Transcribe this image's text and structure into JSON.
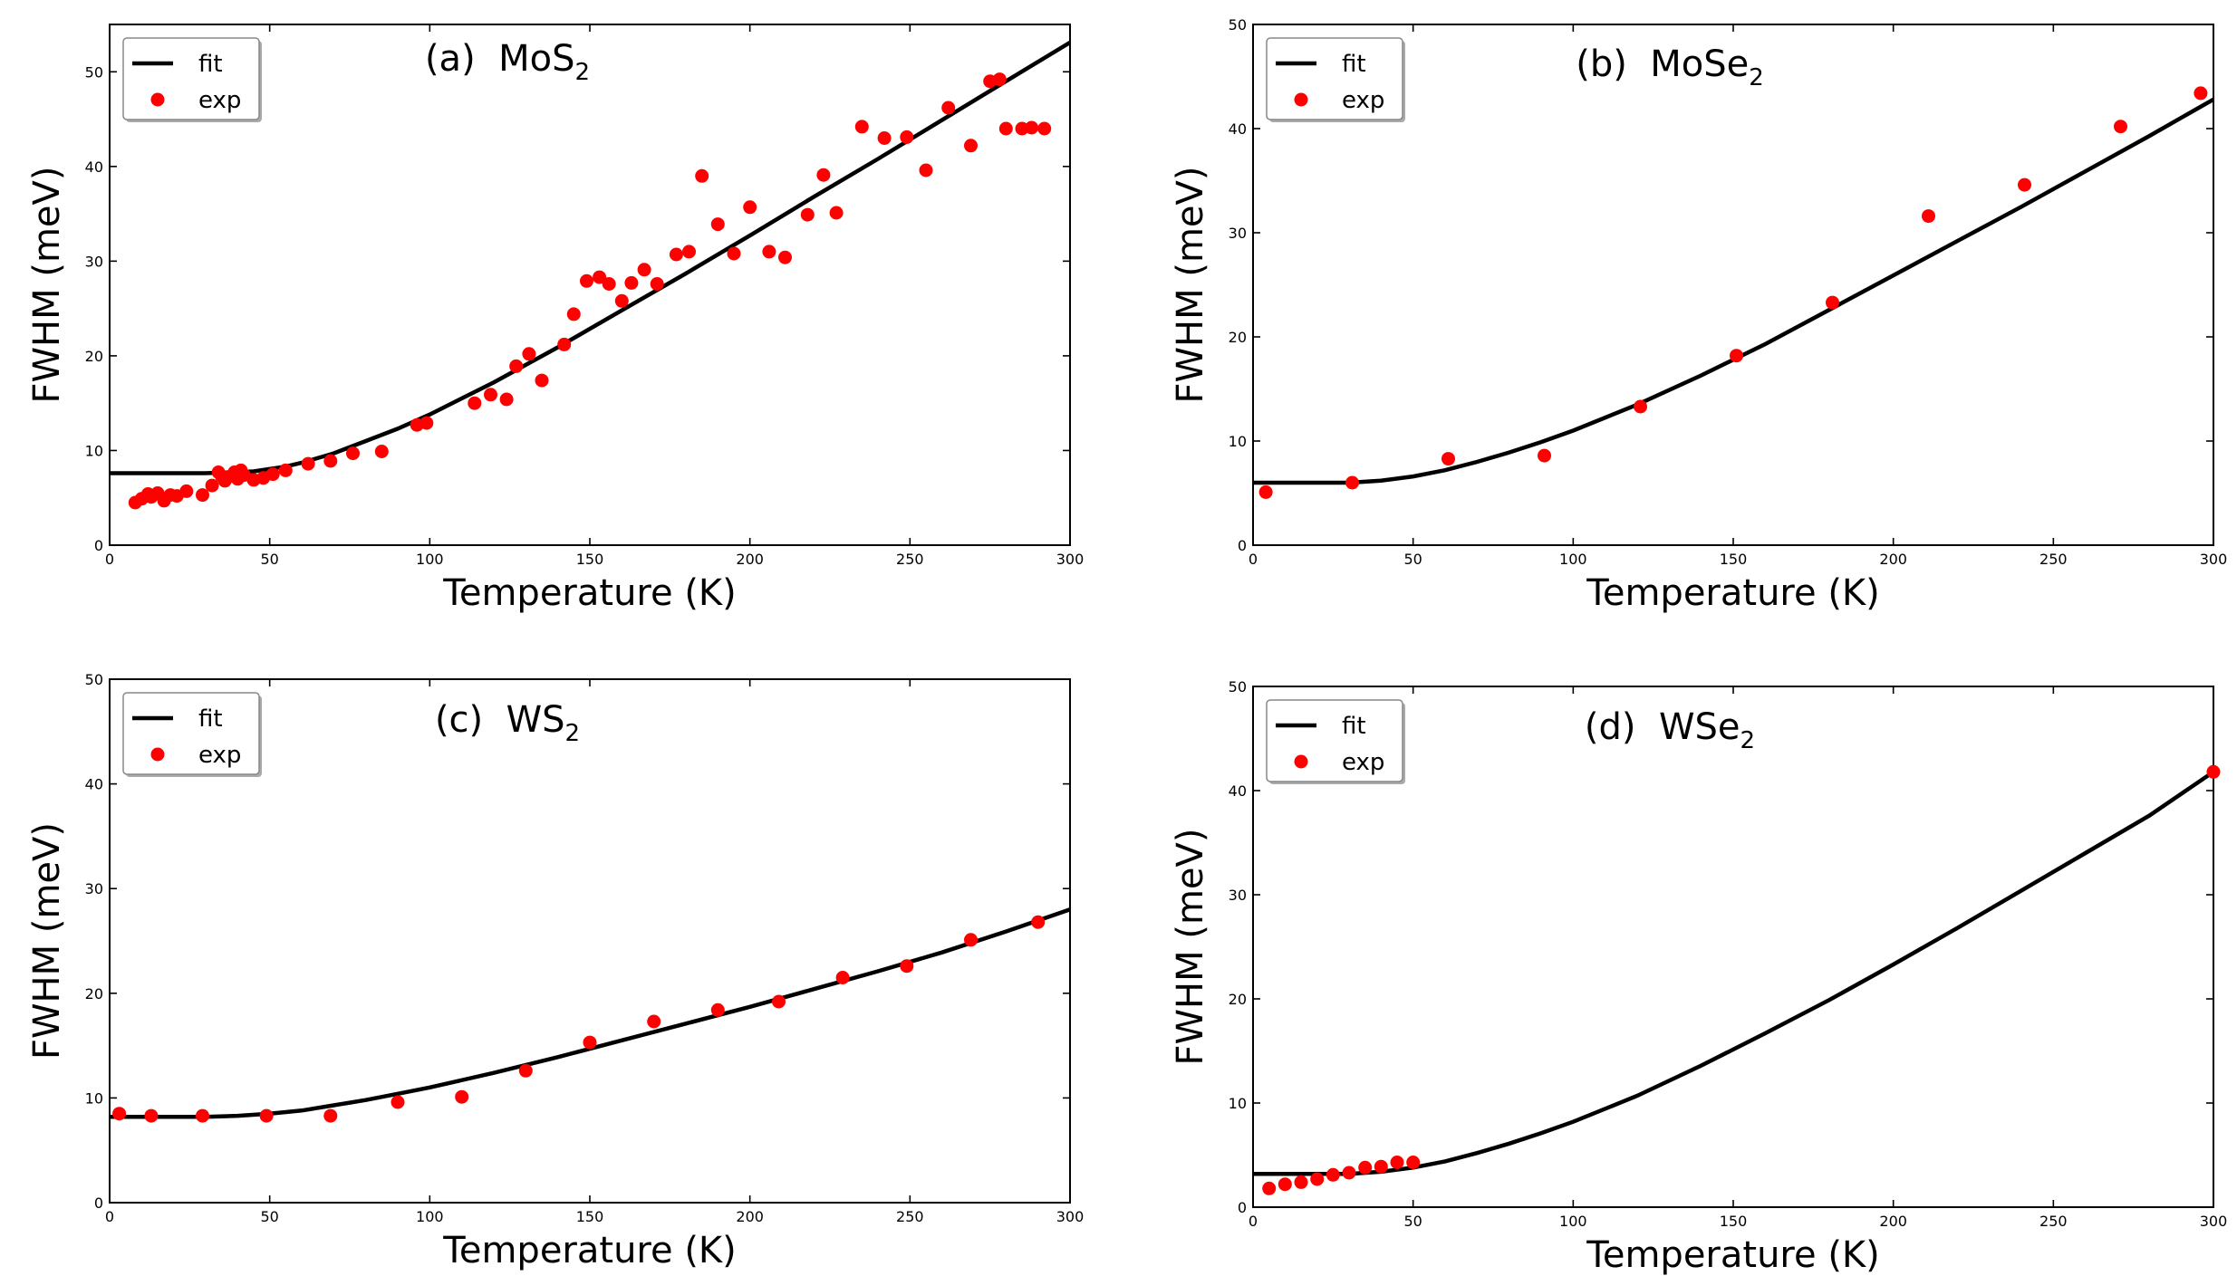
{
  "chart_data": [
    {
      "type": "line+scatter",
      "panel_label": "(a)",
      "material": "MoS",
      "subscript": "2",
      "xlabel": "Temperature (K)",
      "ylabel": "FWHM (meV)",
      "xlim": [
        0,
        300
      ],
      "ylim": [
        0,
        55
      ],
      "xticks": [
        0,
        50,
        100,
        150,
        200,
        250,
        300
      ],
      "yticks": [
        0,
        10,
        20,
        30,
        40,
        50
      ],
      "legend": {
        "position": "top-left",
        "fit_label": "fit",
        "exp_label": "exp"
      },
      "fit": {
        "name": "fit",
        "x": [
          0,
          30,
          45,
          55,
          60,
          70,
          80,
          90,
          100,
          120,
          140,
          160,
          180,
          200,
          220,
          240,
          260,
          280,
          300
        ],
        "y": [
          7.6,
          7.6,
          7.8,
          8.3,
          8.7,
          9.7,
          11.0,
          12.3,
          13.8,
          17.2,
          20.9,
          24.8,
          28.7,
          32.7,
          36.8,
          40.8,
          44.9,
          49.0,
          53.1
        ]
      },
      "exp": {
        "name": "exp",
        "x": [
          8,
          10,
          12,
          13,
          15,
          17,
          19,
          21,
          24,
          29,
          32,
          34,
          35,
          36,
          37,
          39,
          40,
          41,
          42,
          45,
          48,
          51,
          55,
          62,
          69,
          76,
          85,
          96,
          99,
          114,
          119,
          124,
          127,
          131,
          135,
          142,
          145,
          149,
          153,
          156,
          160,
          163,
          167,
          171,
          177,
          181,
          185,
          190,
          195,
          200,
          206,
          211,
          218,
          223,
          227,
          235,
          242,
          249,
          255,
          262,
          269,
          275,
          278,
          280,
          285,
          288,
          292
        ],
        "y": [
          4.5,
          4.9,
          5.4,
          5.1,
          5.5,
          4.7,
          5.3,
          5.2,
          5.7,
          5.3,
          6.3,
          7.7,
          7.3,
          6.8,
          7.2,
          7.7,
          7.0,
          7.9,
          7.4,
          6.9,
          7.1,
          7.5,
          7.9,
          8.6,
          8.9,
          9.7,
          9.9,
          12.7,
          12.9,
          15.0,
          15.9,
          15.4,
          18.9,
          20.2,
          17.4,
          21.2,
          24.4,
          27.9,
          28.3,
          27.6,
          25.8,
          27.7,
          29.1,
          27.6,
          30.7,
          31.0,
          39.0,
          33.9,
          30.8,
          35.7,
          31.0,
          30.4,
          34.9,
          39.1,
          35.1,
          44.2,
          43.0,
          43.1,
          39.6,
          46.2,
          42.2,
          49.0,
          49.2,
          44.0,
          44.0,
          44.1,
          44.0
        ]
      }
    },
    {
      "type": "line+scatter",
      "panel_label": "(b)",
      "material": "MoSe",
      "subscript": "2",
      "xlabel": "Temperature (K)",
      "ylabel": "FWHM (meV)",
      "xlim": [
        0,
        300
      ],
      "ylim": [
        0,
        50
      ],
      "xticks": [
        0,
        50,
        100,
        150,
        200,
        250,
        300
      ],
      "yticks": [
        0,
        10,
        20,
        30,
        40,
        50
      ],
      "legend": {
        "position": "top-left",
        "fit_label": "fit",
        "exp_label": "exp"
      },
      "fit": {
        "name": "fit",
        "x": [
          0,
          30,
          40,
          50,
          60,
          70,
          80,
          90,
          100,
          120,
          140,
          160,
          180,
          200,
          220,
          240,
          260,
          280,
          300
        ],
        "y": [
          6.0,
          6.0,
          6.2,
          6.6,
          7.2,
          8.0,
          8.9,
          9.9,
          11.0,
          13.5,
          16.3,
          19.3,
          22.6,
          25.9,
          29.2,
          32.5,
          35.9,
          39.3,
          42.8
        ]
      },
      "exp": {
        "name": "exp",
        "x": [
          4,
          31,
          61,
          91,
          121,
          151,
          181,
          211,
          241,
          271,
          296
        ],
        "y": [
          5.1,
          6.0,
          8.3,
          8.6,
          13.3,
          18.2,
          23.3,
          31.6,
          34.6,
          40.2,
          43.4
        ]
      }
    },
    {
      "type": "line+scatter",
      "panel_label": "(c)",
      "material": "WS",
      "subscript": "2",
      "xlabel": "Temperature (K)",
      "ylabel": "FWHM (meV)",
      "xlim": [
        0,
        300
      ],
      "ylim": [
        0,
        50
      ],
      "xticks": [
        0,
        50,
        100,
        150,
        200,
        250,
        300
      ],
      "yticks": [
        0,
        10,
        20,
        30,
        40,
        50
      ],
      "legend": {
        "position": "top-left",
        "fit_label": "fit",
        "exp_label": "exp"
      },
      "fit": {
        "name": "fit",
        "x": [
          0,
          30,
          40,
          50,
          60,
          70,
          80,
          90,
          100,
          120,
          140,
          160,
          180,
          200,
          220,
          240,
          260,
          280,
          300
        ],
        "y": [
          8.2,
          8.2,
          8.3,
          8.5,
          8.8,
          9.3,
          9.8,
          10.4,
          11.0,
          12.4,
          13.9,
          15.5,
          17.1,
          18.7,
          20.4,
          22.1,
          23.9,
          25.9,
          28.0
        ]
      },
      "exp": {
        "name": "exp",
        "x": [
          3,
          13,
          29,
          49,
          69,
          90,
          110,
          130,
          150,
          170,
          190,
          209,
          229,
          249,
          269,
          290
        ],
        "y": [
          8.5,
          8.3,
          8.3,
          8.3,
          8.3,
          9.6,
          10.1,
          12.6,
          15.3,
          17.3,
          18.4,
          19.2,
          21.5,
          22.6,
          25.1,
          26.8
        ]
      }
    },
    {
      "type": "line+scatter",
      "panel_label": "(d)",
      "material": "WSe",
      "subscript": "2",
      "xlabel": "Temperature (K)",
      "ylabel": "FWHM (meV)",
      "xlim": [
        0,
        300
      ],
      "ylim": [
        0,
        50
      ],
      "xticks": [
        0,
        50,
        100,
        150,
        200,
        250,
        300
      ],
      "yticks": [
        0,
        10,
        20,
        30,
        40,
        50
      ],
      "legend": {
        "position": "top-left",
        "fit_label": "fit",
        "exp_label": "exp"
      },
      "fit": {
        "name": "fit",
        "x": [
          0,
          30,
          40,
          50,
          60,
          70,
          80,
          90,
          100,
          120,
          140,
          160,
          180,
          200,
          220,
          240,
          260,
          280,
          300
        ],
        "y": [
          3.2,
          3.2,
          3.4,
          3.8,
          4.4,
          5.2,
          6.1,
          7.1,
          8.2,
          10.7,
          13.6,
          16.7,
          19.9,
          23.3,
          26.8,
          30.4,
          34.0,
          37.6,
          41.8
        ]
      },
      "exp": {
        "name": "exp",
        "x": [
          5,
          10,
          15,
          20,
          25,
          30,
          35,
          40,
          45,
          50,
          300
        ],
        "y": [
          1.8,
          2.2,
          2.4,
          2.7,
          3.1,
          3.3,
          3.8,
          3.9,
          4.3,
          4.3,
          41.8
        ]
      }
    }
  ]
}
